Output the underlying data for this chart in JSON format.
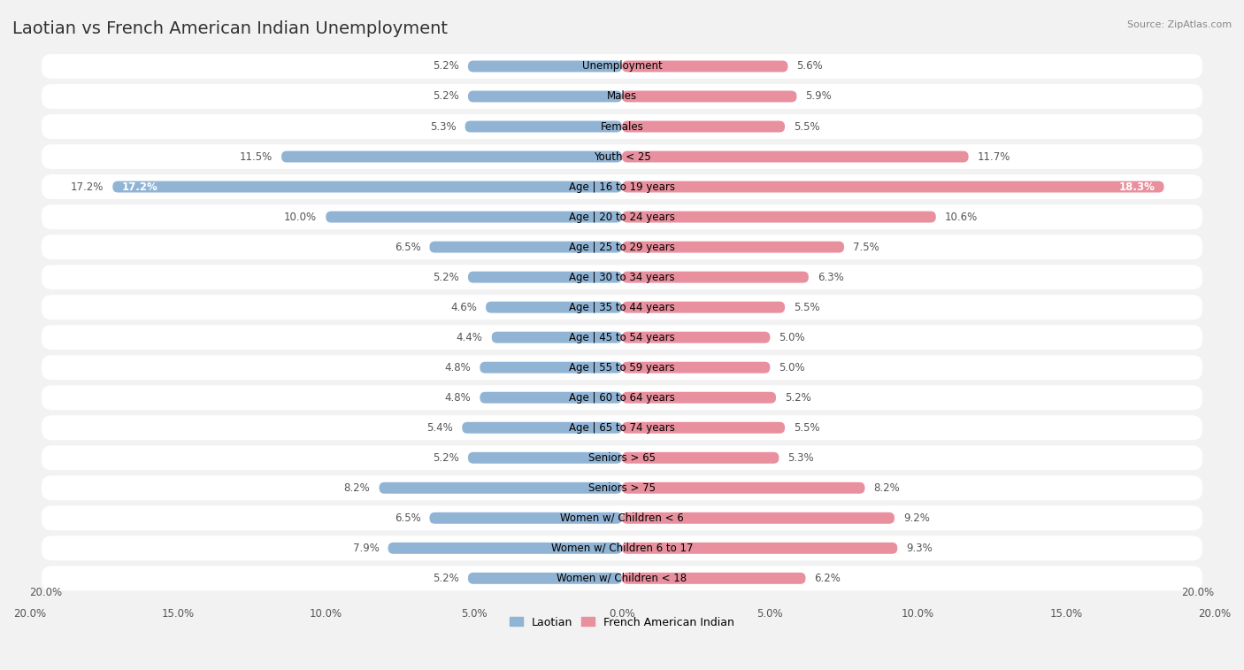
{
  "title": "Laotian vs French American Indian Unemployment",
  "source": "Source: ZipAtlas.com",
  "categories": [
    "Unemployment",
    "Males",
    "Females",
    "Youth < 25",
    "Age | 16 to 19 years",
    "Age | 20 to 24 years",
    "Age | 25 to 29 years",
    "Age | 30 to 34 years",
    "Age | 35 to 44 years",
    "Age | 45 to 54 years",
    "Age | 55 to 59 years",
    "Age | 60 to 64 years",
    "Age | 65 to 74 years",
    "Seniors > 65",
    "Seniors > 75",
    "Women w/ Children < 6",
    "Women w/ Children 6 to 17",
    "Women w/ Children < 18"
  ],
  "laotian": [
    5.2,
    5.2,
    5.3,
    11.5,
    17.2,
    10.0,
    6.5,
    5.2,
    4.6,
    4.4,
    4.8,
    4.8,
    5.4,
    5.2,
    8.2,
    6.5,
    7.9,
    5.2
  ],
  "french_american_indian": [
    5.6,
    5.9,
    5.5,
    11.7,
    18.3,
    10.6,
    7.5,
    6.3,
    5.5,
    5.0,
    5.0,
    5.2,
    5.5,
    5.3,
    8.2,
    9.2,
    9.3,
    6.2
  ],
  "laotian_color": "#91b4d5",
  "french_color": "#e8909e",
  "laotian_label": "Laotian",
  "french_label": "French American Indian",
  "axis_max": 20.0,
  "background_color": "#f2f2f2",
  "row_color": "#ffffff",
  "title_fontsize": 14,
  "label_fontsize": 8.5,
  "value_fontsize": 8.5
}
